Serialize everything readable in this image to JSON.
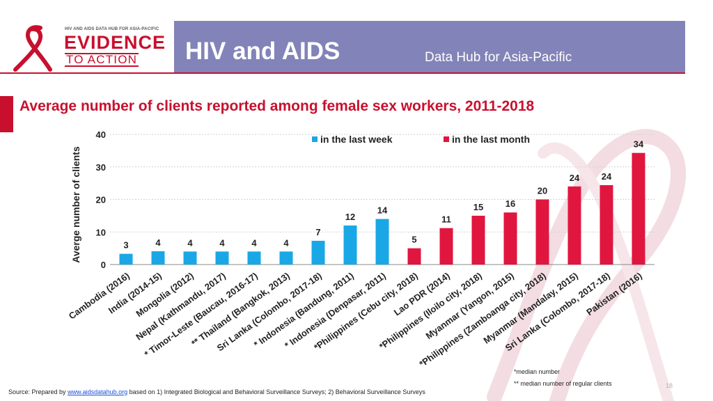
{
  "header": {
    "logo_small": "HIV AND AIDS DATA HUB FOR ASIA-PACIFIC",
    "logo_big": "EVIDENCE",
    "logo_sub": "TO ACTION",
    "title": "HIV and AIDS",
    "subtitle": "Data Hub for Asia-Pacific"
  },
  "colors": {
    "header_band": "#8283b8",
    "accent_red": "#c8102e",
    "series_week": "#1aa7e6",
    "series_month": "#e0163f"
  },
  "chart_data": {
    "type": "bar",
    "title": "Average number of clients reported among female sex workers, 2011-2018",
    "ylabel": "Averge number of clients",
    "xlabel": "",
    "ylim": [
      0,
      40
    ],
    "yticks": [
      0,
      10,
      20,
      30,
      40
    ],
    "grid": true,
    "legend_position": "top",
    "categories": [
      "Cambodia (2016)",
      "India (2014-15)",
      "Mongolia (2012)",
      "Nepal (Kathmandu, 2017)",
      "* Timor-Leste (Baucau, 2016-17)",
      "** Thailand (Bangkok, 2013)",
      "Sri Lanka (Colombo, 2017-18)",
      "* Indonesia (Bandung, 2011)",
      "* Indonesia (Denpasar, 2011)",
      "*Philippines (Cebu city, 2018)",
      "Lao PDR (2014)",
      "*Philippines (Iloilo city, 2018)",
      "Myanmar (Yangon, 2015)",
      "*Philippines (Zamboanga city, 2018)",
      "Myanmar (Mandalay, 2015)",
      "Sri Lanka (Colombo, 2017-18)",
      "Pakistan (2016)"
    ],
    "values": [
      3.3,
      4.1,
      4.0,
      4.0,
      4.0,
      4.0,
      7.3,
      12.0,
      14.0,
      5.0,
      11.2,
      15.0,
      16.0,
      20.0,
      24.0,
      24.4,
      34.3
    ],
    "data_labels": [
      "3",
      "4",
      "4",
      "4",
      "4",
      "4",
      "7",
      "12",
      "14",
      "5",
      "11",
      "15",
      "16",
      "20",
      "24",
      "24",
      "34"
    ],
    "series_index": [
      0,
      0,
      0,
      0,
      0,
      0,
      0,
      0,
      0,
      1,
      1,
      1,
      1,
      1,
      1,
      1,
      1
    ],
    "series": [
      {
        "name": "in the last week"
      },
      {
        "name": "in the last month"
      }
    ]
  },
  "footnotes": {
    "median": "*median number",
    "median_regular": "** median number of regular clients"
  },
  "source": {
    "prefix": "Source: Prepared by ",
    "link": "www.aidsdatahub.org",
    "suffix": " based on 1) Integrated Biological and Behavioral Surveillance Surveys; 2) Behavioral Surveillance Surveys"
  },
  "page_number": "18"
}
